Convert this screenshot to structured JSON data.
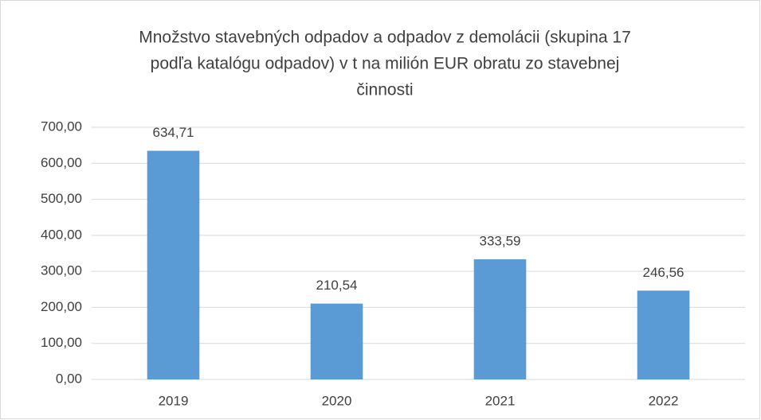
{
  "chart_data": {
    "type": "bar",
    "title": [
      "Množstvo stavebných  odpadov a odpadov z demolácii (skupina 17",
      "podľa katalógu odpadov) v t na milión EUR obratu zo stavebnej",
      "činnosti"
    ],
    "categories": [
      "2019",
      "2020",
      "2021",
      "2022"
    ],
    "values": [
      634.71,
      210.54,
      333.59,
      246.56
    ],
    "value_labels": [
      "634,71",
      "210,54",
      "333,59",
      "246,56"
    ],
    "color": "#5b9bd5",
    "ylim": [
      0,
      700
    ],
    "yticks": [
      {
        "value": 0,
        "label": "0,00"
      },
      {
        "value": 100,
        "label": "100,00"
      },
      {
        "value": 200,
        "label": "200,00"
      },
      {
        "value": 300,
        "label": "300,00"
      },
      {
        "value": 400,
        "label": "400,00"
      },
      {
        "value": 500,
        "label": "500,00"
      },
      {
        "value": 600,
        "label": "600,00"
      },
      {
        "value": 700,
        "label": "700,00"
      }
    ],
    "grid": true
  }
}
